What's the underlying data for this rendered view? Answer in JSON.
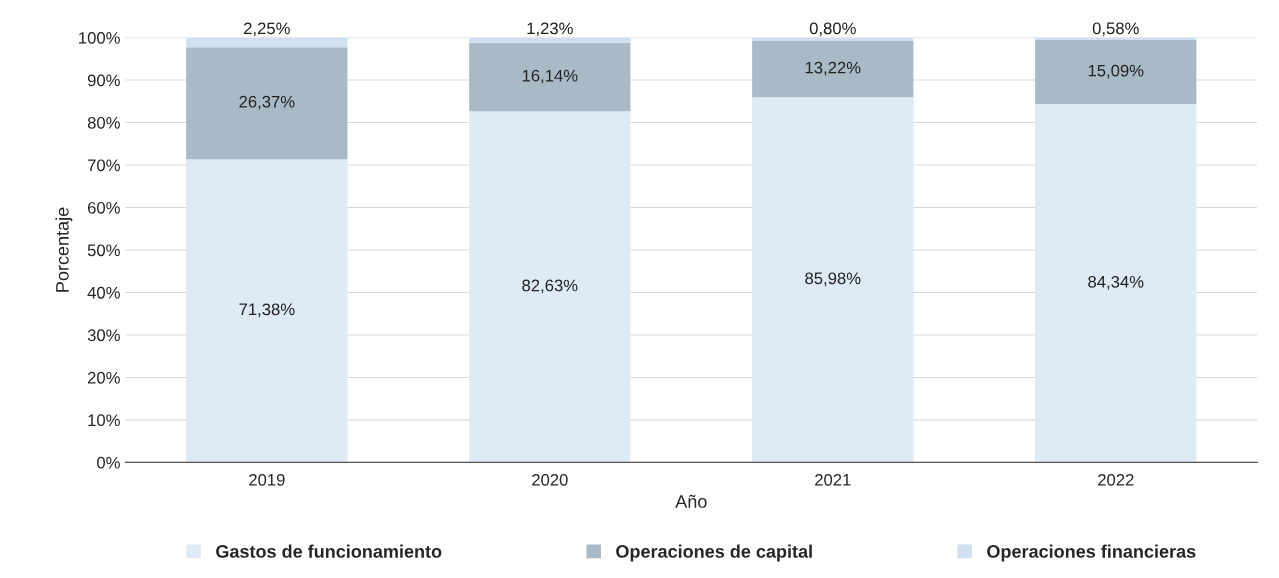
{
  "chart_data": {
    "type": "bar",
    "stacked": true,
    "xlabel": "Año",
    "ylabel": "Porcentaje",
    "categories": [
      "2019",
      "2020",
      "2021",
      "2022"
    ],
    "series": [
      {
        "name": "Gastos de funcionamiento",
        "color": "#deeaf6",
        "values": [
          71.38,
          82.63,
          85.98,
          84.34
        ],
        "value_labels": [
          "71,38%",
          "82,63%",
          "85,98%",
          "84,34%"
        ]
      },
      {
        "name": "Operaciones de capital",
        "color": "#a9bac7",
        "values": [
          26.37,
          16.14,
          13.22,
          15.09
        ],
        "value_labels": [
          "26,37%",
          "16,14%",
          "13,22%",
          "15,09%"
        ]
      },
      {
        "name": "Operaciones financieras",
        "color": "#cfe1f1",
        "values": [
          2.25,
          1.23,
          0.8,
          0.58
        ],
        "value_labels": [
          "2,25%",
          "1,23%",
          "0,80%",
          "0,58%"
        ]
      }
    ],
    "ylim": [
      0,
      100
    ],
    "yticks": [
      {
        "value": 0,
        "label": "0%"
      },
      {
        "value": 10,
        "label": "10%"
      },
      {
        "value": 20,
        "label": "20%"
      },
      {
        "value": 30,
        "label": "30%"
      },
      {
        "value": 40,
        "label": "40%"
      },
      {
        "value": 50,
        "label": "50%"
      },
      {
        "value": 60,
        "label": "60%"
      },
      {
        "value": 70,
        "label": "70%"
      },
      {
        "value": 80,
        "label": "80%"
      },
      {
        "value": 90,
        "label": "90%"
      },
      {
        "value": 100,
        "label": "100%"
      }
    ],
    "grid": "y",
    "legend": "bottom"
  }
}
